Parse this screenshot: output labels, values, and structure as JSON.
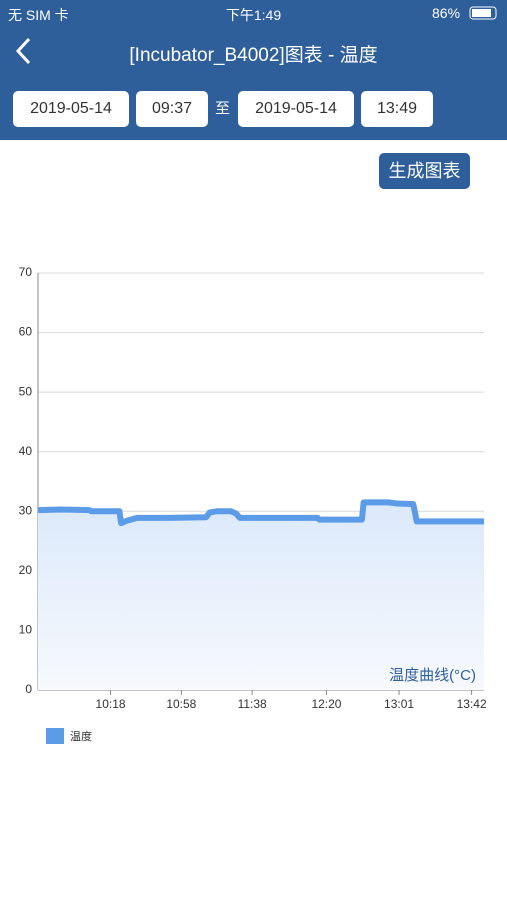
{
  "status_bar": {
    "carrier": "无 SIM 卡",
    "time": "下午1:49",
    "battery": "86%"
  },
  "nav": {
    "title": "[Incubator_B4002]图表 - 温度"
  },
  "filters": {
    "start_date": "2019-05-14",
    "start_time": "09:37",
    "separator": "至",
    "end_date": "2019-05-14",
    "end_time": "13:49"
  },
  "button": "生成图表",
  "chart_data": {
    "type": "line",
    "annotation": "温度曲线(°C)",
    "x": [
      "09:37",
      "09:50",
      "10:06",
      "10:07",
      "10:23",
      "10:24",
      "10:27",
      "10:33",
      "10:50",
      "11:12",
      "11:14",
      "11:18",
      "11:26",
      "11:29",
      "11:31",
      "11:50",
      "12:15",
      "12:16",
      "12:40",
      "12:41",
      "12:55",
      "13:00",
      "13:09",
      "13:10",
      "13:11",
      "13:30",
      "13:49"
    ],
    "series": [
      {
        "name": "温度",
        "color": "#5b9be8",
        "values": [
          30.2,
          30.3,
          30.2,
          30.0,
          30.0,
          28.0,
          28.4,
          28.9,
          28.9,
          29.0,
          29.8,
          30.0,
          30.0,
          29.6,
          28.9,
          28.9,
          28.9,
          28.6,
          28.6,
          31.5,
          31.5,
          31.3,
          31.2,
          29.8,
          28.3,
          28.3,
          28.3
        ]
      }
    ],
    "xlim": [
      "09:37",
      "13:49"
    ],
    "xticks": [
      "10:18",
      "10:58",
      "11:38",
      "12:20",
      "13:01",
      "13:42"
    ],
    "ylim": [
      0,
      70
    ],
    "yticks": [
      0,
      10,
      20,
      30,
      40,
      50,
      60,
      70
    ],
    "grid": true
  }
}
